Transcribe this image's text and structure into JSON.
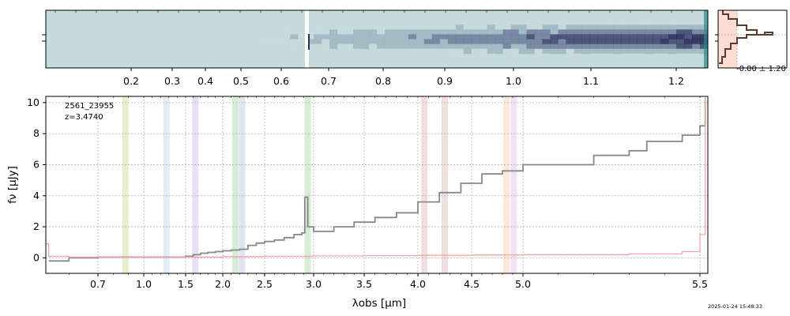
{
  "chart_data": [
    {
      "type": "heatmap",
      "panel": "spectrum-2d",
      "x_scale": "nonlinear",
      "xticks": [
        "0.2",
        "0.3",
        "0.4",
        "0.5",
        "0.6",
        "0.7",
        "0.8",
        "0.9",
        "1.0",
        "1.1",
        "1.2"
      ],
      "colormap": [
        "#c5dadb",
        "#9fb6c2",
        "#6a7b9a",
        "#3a3f6a",
        "#1e2150"
      ],
      "emission_line_x": 2.92,
      "gap_x": 2.92
    },
    {
      "type": "line",
      "panel": "spectrum-1d",
      "xlabel": "λobs [μm]",
      "ylabel": "fν [μJy]",
      "xlim": [
        0.52,
        5.53
      ],
      "ylim": [
        -1.0,
        10.4
      ],
      "x_scale": "nonlinear",
      "xticks": [
        "0.7",
        "1.0",
        "1.5",
        "2.0",
        "2.5",
        "3.0",
        "3.5",
        "4.0",
        "4.5",
        "5.0",
        "5.5"
      ],
      "xtick_values": [
        0.7,
        1.0,
        1.5,
        2.0,
        2.5,
        3.0,
        3.5,
        4.0,
        4.5,
        5.0,
        5.5
      ],
      "yticks": [
        "0",
        "2",
        "4",
        "6",
        "8",
        "10"
      ],
      "ytick_values": [
        0,
        2,
        4,
        6,
        8,
        10
      ],
      "grid": true,
      "annotation_id": "2561_23955",
      "annotation_z": "z=3.4740",
      "series": [
        {
          "color": "#888888",
          "x": [
            0.53,
            0.6,
            0.7,
            0.8,
            0.9,
            1.0,
            1.1,
            1.2,
            1.3,
            1.4,
            1.5,
            1.6,
            1.7,
            1.8,
            1.9,
            2.0,
            2.1,
            2.2,
            2.3,
            2.4,
            2.5,
            2.6,
            2.7,
            2.8,
            2.88,
            2.91,
            2.94,
            3.0,
            3.2,
            3.4,
            3.6,
            3.8,
            4.0,
            4.2,
            4.4,
            4.6,
            4.8,
            5.0,
            5.2,
            5.3,
            5.35,
            5.45,
            5.5,
            5.52
          ],
          "y": [
            -0.2,
            0.0,
            0.05,
            0.05,
            0.05,
            0.05,
            0.05,
            0.05,
            0.05,
            0.05,
            0.1,
            0.2,
            0.3,
            0.35,
            0.4,
            0.45,
            0.5,
            0.55,
            0.8,
            0.95,
            1.05,
            1.15,
            1.3,
            1.5,
            1.6,
            3.9,
            2.0,
            1.7,
            2.0,
            2.3,
            2.6,
            2.9,
            3.6,
            4.2,
            4.8,
            5.4,
            5.6,
            6.0,
            6.6,
            6.9,
            7.5,
            7.9,
            8.5,
            10.3
          ]
        },
        {
          "color": "#f4a6a6",
          "x": [
            0.52,
            0.53,
            0.6,
            1.0,
            1.5,
            2.0,
            2.5,
            3.0,
            3.5,
            4.0,
            4.5,
            5.0,
            5.3,
            5.45,
            5.5,
            5.52
          ],
          "y": [
            0.9,
            0.1,
            0.05,
            0.05,
            0.05,
            0.08,
            0.1,
            0.12,
            0.14,
            0.16,
            0.18,
            0.2,
            0.25,
            0.4,
            1.5,
            10.4
          ]
        }
      ],
      "bands": [
        {
          "x": 0.88,
          "color": "#d8e0a0"
        },
        {
          "x": 1.27,
          "color": "#c8dff2"
        },
        {
          "x": 1.63,
          "color": "#d6c8ec"
        },
        {
          "x": 2.15,
          "color": "#b8dcb8"
        },
        {
          "x": 2.23,
          "color": "#c5cfe8"
        },
        {
          "x": 2.94,
          "color": "#b8dcb8"
        },
        {
          "x": 4.06,
          "color": "#e6c2c2"
        },
        {
          "x": 4.25,
          "color": "#e6c2c2"
        },
        {
          "x": 4.84,
          "color": "#fcd6bc"
        },
        {
          "x": 4.91,
          "color": "#e4cde8"
        }
      ]
    },
    {
      "type": "bar",
      "panel": "profile",
      "label": "-0.00 ± 1.20",
      "orientation": "horizontal"
    }
  ],
  "timestamp": "2025-01-24 15:48:33"
}
